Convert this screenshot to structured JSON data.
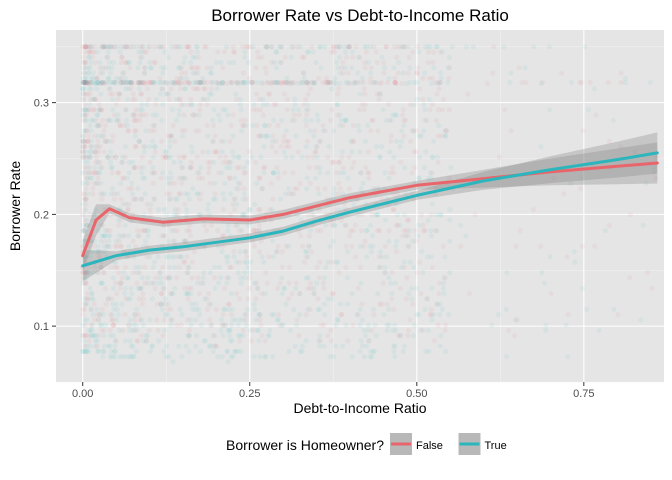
{
  "chart_data": {
    "type": "scatter",
    "title": "Borrower Rate vs Debt-to-Income Ratio",
    "xlabel": "Debt-to-Income Ratio",
    "ylabel": "Borrower Rate",
    "xlim": [
      -0.04,
      0.87
    ],
    "ylim": [
      0.05,
      0.365
    ],
    "x_ticks": [
      0.0,
      0.25,
      0.5,
      0.75
    ],
    "x_tick_labels": [
      "0.00",
      "0.25",
      "0.50",
      "0.75"
    ],
    "y_ticks": [
      0.1,
      0.2,
      0.3
    ],
    "y_tick_labels": [
      "0.1",
      "0.2",
      "0.3"
    ],
    "grid": true,
    "panel_background": "#e5e5e5",
    "legend": {
      "title": "Borrower is Homeowner?",
      "placement": "bottom",
      "entries": [
        {
          "label": "False",
          "color": "#e8666b"
        },
        {
          "label": "True",
          "color": "#2bb6bd"
        }
      ]
    },
    "points_note": "dense semi-transparent points for both groups over the full range",
    "series": [
      {
        "name": "False",
        "color": "#e8666b",
        "smooth": [
          [
            0.0,
            0.163
          ],
          [
            0.02,
            0.195
          ],
          [
            0.04,
            0.205
          ],
          [
            0.07,
            0.197
          ],
          [
            0.12,
            0.193
          ],
          [
            0.18,
            0.196
          ],
          [
            0.25,
            0.195
          ],
          [
            0.3,
            0.2
          ],
          [
            0.4,
            0.215
          ],
          [
            0.5,
            0.226
          ],
          [
            0.6,
            0.232
          ],
          [
            0.7,
            0.238
          ],
          [
            0.8,
            0.243
          ],
          [
            0.86,
            0.246
          ]
        ]
      },
      {
        "name": "True",
        "color": "#2bb6bd",
        "smooth": [
          [
            0.0,
            0.154
          ],
          [
            0.05,
            0.163
          ],
          [
            0.1,
            0.168
          ],
          [
            0.15,
            0.171
          ],
          [
            0.2,
            0.175
          ],
          [
            0.25,
            0.179
          ],
          [
            0.3,
            0.185
          ],
          [
            0.35,
            0.194
          ],
          [
            0.4,
            0.202
          ],
          [
            0.5,
            0.217
          ],
          [
            0.6,
            0.23
          ],
          [
            0.7,
            0.24
          ],
          [
            0.8,
            0.249
          ],
          [
            0.86,
            0.255
          ]
        ]
      }
    ]
  }
}
